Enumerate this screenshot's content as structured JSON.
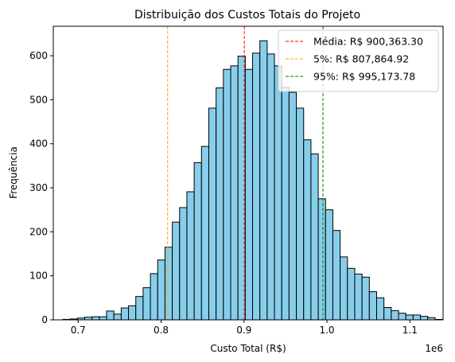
{
  "chart_data": {
    "type": "bar",
    "title": "Distribuição dos Custos Totais do Projeto",
    "xlabel": "Custo Total (R$)",
    "ylabel": "Frequência",
    "x_offset_label": "1e6",
    "xlim": [
      0.67,
      1.14
    ],
    "ylim": [
      0,
      667
    ],
    "x_ticks": [
      0.7,
      0.8,
      0.9,
      1.0,
      1.1
    ],
    "x_tick_labels": [
      "0.7",
      "0.8",
      "0.9",
      "1.0",
      "1.1"
    ],
    "y_ticks": [
      0,
      100,
      200,
      300,
      400,
      500,
      600
    ],
    "y_tick_labels": [
      "0",
      "100",
      "200",
      "300",
      "400",
      "500",
      "600"
    ],
    "bin_start": 0.6815,
    "bin_width": 0.0088,
    "values": [
      1,
      2,
      4,
      6,
      7,
      7,
      20,
      13,
      27,
      32,
      53,
      73,
      105,
      136,
      165,
      222,
      255,
      291,
      357,
      394,
      481,
      527,
      569,
      577,
      599,
      569,
      606,
      634,
      604,
      577,
      528,
      517,
      481,
      409,
      377,
      275,
      250,
      203,
      143,
      117,
      104,
      97,
      64,
      50,
      28,
      21,
      15,
      11,
      11,
      8,
      5,
      1,
      0,
      0,
      0,
      0,
      1,
      1
    ],
    "bar_color": "#87ceeb",
    "bar_edge_color": "#000000",
    "grid": false,
    "legend_position": "top-right",
    "vlines": [
      {
        "x": 0.9003633,
        "label": "Média: R$ 900,363.30",
        "color": "#ff0000"
      },
      {
        "x": 0.8078649,
        "label": "5%: R$ 807,864.92",
        "color": "#ffa500"
      },
      {
        "x": 0.9951738,
        "label": "95%: R$ 995,173.78",
        "color": "#008000"
      }
    ]
  }
}
